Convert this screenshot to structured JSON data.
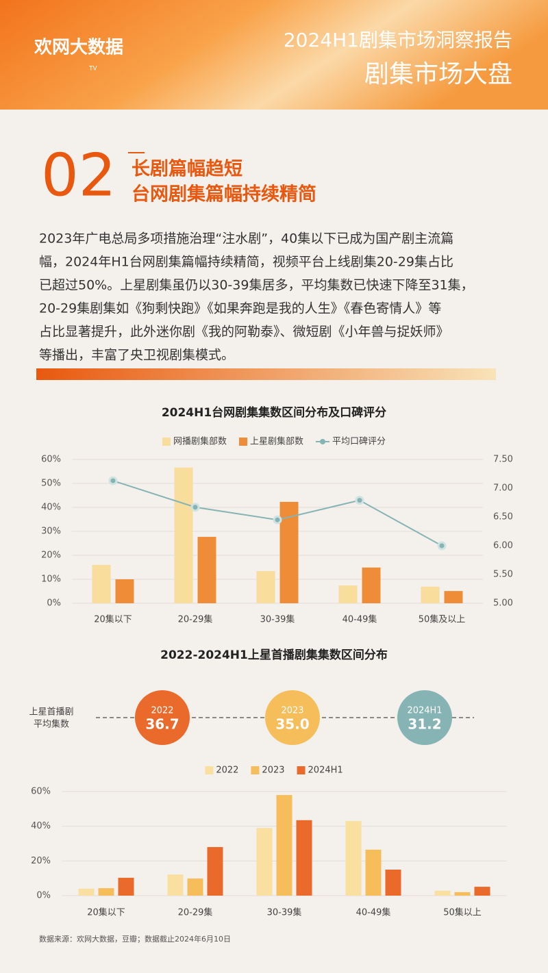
{
  "header": {
    "logo": "欢网大数据",
    "logo_badge": "TV",
    "title": "2024H1剧集市场洞察报告",
    "subtitle": "剧集市场大盘"
  },
  "section": {
    "number": "02",
    "headings": [
      "长剧篇幅趋短",
      "台网剧集篇幅持续精简"
    ]
  },
  "body": [
    "2023年广电总局多项措施治理“注水剧”，40集以下已成为国产剧主流篇",
    "幅，2024年H1台网剧集篇幅持续精简，视频平台上线剧集20-29集占比",
    "已超过50%。上星剧集虽仍以30-39集居多，平均集数已快速下降至31集，",
    "20-29集剧集如《狗剩快跑》《如果奔跑是我的人生》《春色寄情人》等",
    "占比显著提升，此外迷你剧《我的阿勒泰》、微短剧《小年兽与捉妖师》",
    "等播出，丰富了央卫视剧集模式。"
  ],
  "chart_data": [
    {
      "type": "bar",
      "title": "2024H1台网剧集集数区间分布及口碑评分",
      "categories": [
        "20集以下",
        "20-29集",
        "30-39集",
        "40-49集",
        "50集及以上"
      ],
      "series": [
        {
          "name": "网播剧集部数",
          "color": "#f8dd9c",
          "values": [
            16,
            56.6,
            13.4,
            7.4,
            6.9
          ]
        },
        {
          "name": "上星剧集部数",
          "color": "#ef8c38",
          "values": [
            10,
            27.7,
            42.3,
            14.9,
            5.1
          ]
        },
        {
          "name": "平均口碑评分",
          "color": "#86b3b3",
          "type": "line",
          "axis": "y2",
          "values": [
            7.13,
            6.67,
            6.45,
            6.79,
            6.0
          ]
        }
      ],
      "ylim": [
        0,
        60
      ],
      "yticks": [
        {
          "value": 0,
          "label": "0%"
        },
        {
          "value": 10,
          "label": "10%"
        },
        {
          "value": 20,
          "label": "20%"
        },
        {
          "value": 30,
          "label": "30%"
        },
        {
          "value": 40,
          "label": "40%"
        },
        {
          "value": 50,
          "label": "50%"
        },
        {
          "value": 60,
          "label": "60%"
        }
      ],
      "y2lim": [
        5,
        7.5
      ],
      "y2ticks": [
        {
          "value": 5,
          "label": "5.00"
        },
        {
          "value": 5.5,
          "label": "5.50"
        },
        {
          "value": 6,
          "label": "6.00"
        },
        {
          "value": 6.5,
          "label": "6.50"
        },
        {
          "value": 7,
          "label": "7.00"
        },
        {
          "value": 7.5,
          "label": "7.50"
        }
      ],
      "grid": true
    },
    {
      "type": "bar",
      "title": "2022-2024H1上星首播剧集集数区间分布",
      "categories": [
        "20集以下",
        "20-29集",
        "30-39集",
        "40-49集",
        "50集以上"
      ],
      "series": [
        {
          "name": "2022",
          "color": "#f9e0a0",
          "values": [
            4,
            12.2,
            39,
            43,
            2.8
          ]
        },
        {
          "name": "2023",
          "color": "#f5be5a",
          "values": [
            4.3,
            9.9,
            58,
            26.5,
            2
          ]
        },
        {
          "name": "2024H1",
          "color": "#ea6a2c",
          "values": [
            10.3,
            28,
            43.5,
            15,
            5.1
          ]
        }
      ],
      "ylim": [
        0,
        60
      ],
      "yticks": [
        {
          "value": 0,
          "label": "0%"
        },
        {
          "value": 20,
          "label": "20%"
        },
        {
          "value": 40,
          "label": "40%"
        },
        {
          "value": 60,
          "label": "60%"
        }
      ],
      "grid": true
    }
  ],
  "averages": {
    "label": [
      "上星首播剧",
      "平均集数"
    ],
    "items": [
      {
        "year": "2022",
        "value": "36.7",
        "color": "#ea6a2c"
      },
      {
        "year": "2023",
        "value": "35.0",
        "color": "#f5be5a"
      },
      {
        "year": "2024H1",
        "value": "31.2",
        "color": "#86b3b3"
      }
    ]
  },
  "source": "数据来源：欢网大数据，豆瓣；数据截止2024年6月10日"
}
